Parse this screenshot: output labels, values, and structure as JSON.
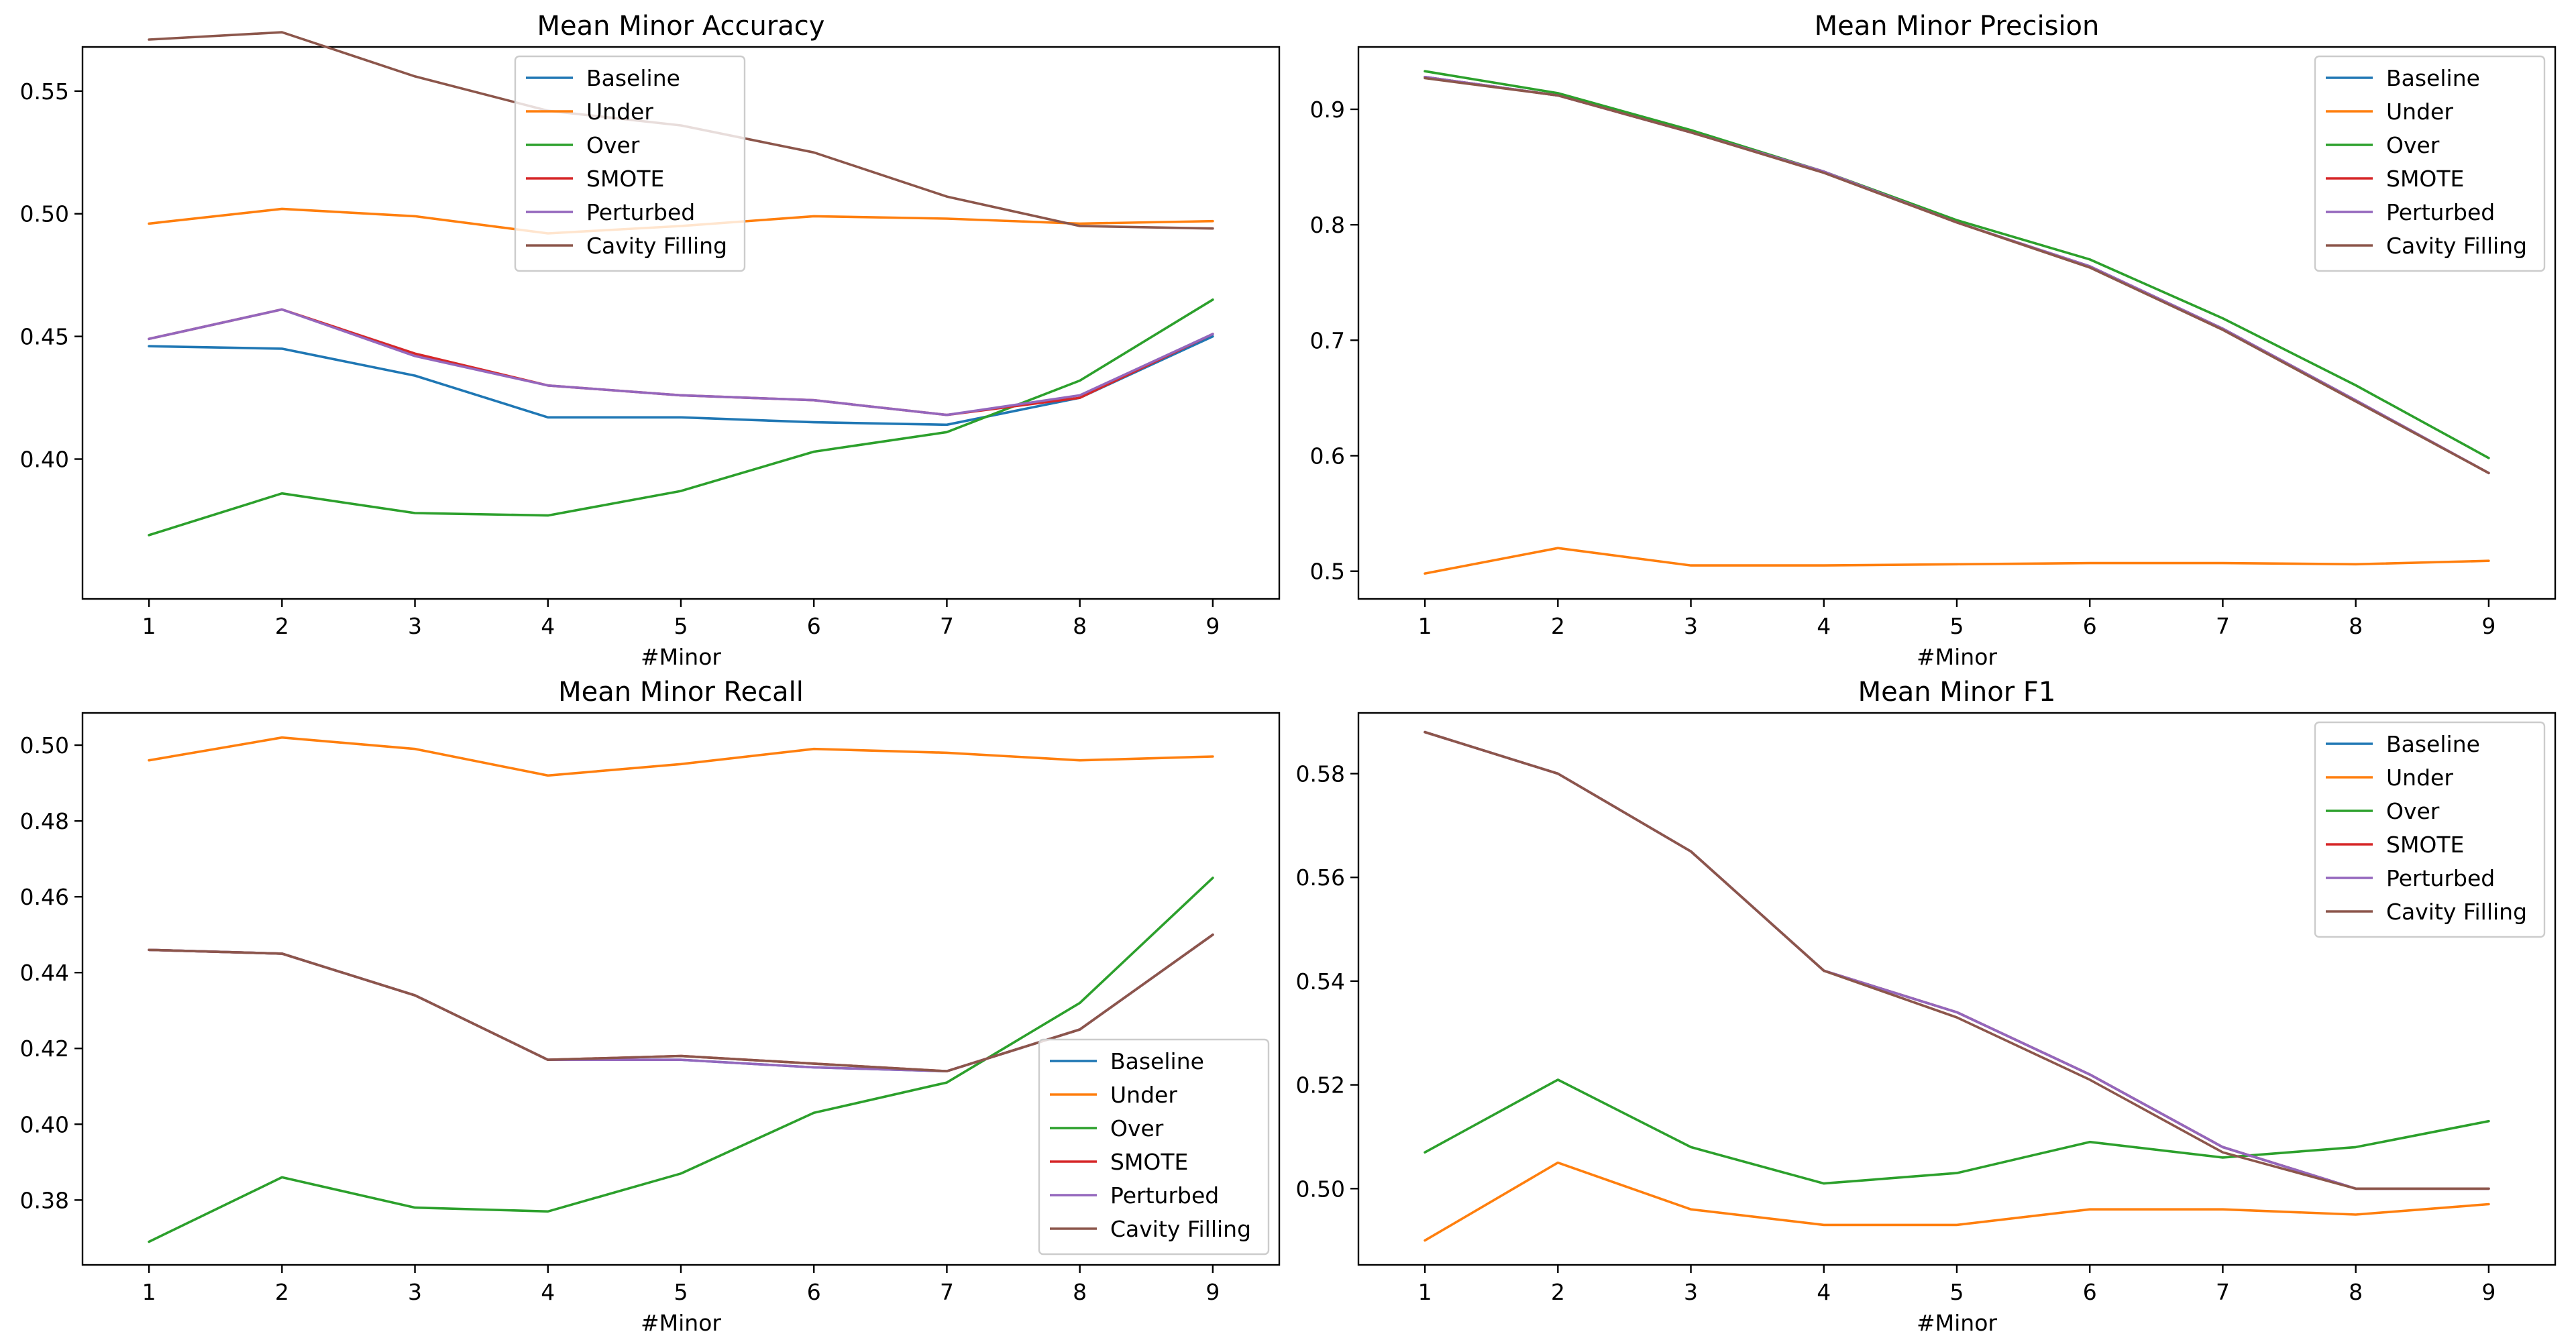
{
  "colors": {
    "Baseline": "#1f77b4",
    "Under": "#ff7f0e",
    "Over": "#2ca02c",
    "SMOTE": "#d62728",
    "Perturbed": "#9467bd",
    "Cavity Filling": "#8c564b"
  },
  "chart_data": [
    {
      "type": "line",
      "title": "Mean Minor Accuracy",
      "xlabel": "#Minor",
      "ylabel": "",
      "x": [
        1,
        2,
        3,
        4,
        5,
        6,
        7,
        8,
        9
      ],
      "xlim": [
        0.5,
        9.5
      ],
      "ylim": [
        0.343,
        0.568
      ],
      "yticks": [
        0.4,
        0.45,
        0.5,
        0.55
      ],
      "ytick_labels": [
        "0.40",
        "0.45",
        "0.50",
        "0.55"
      ],
      "legend": "upper-center",
      "series": [
        {
          "name": "Baseline",
          "values": [
            0.446,
            0.445,
            0.434,
            0.417,
            0.417,
            0.415,
            0.414,
            0.425,
            0.45
          ]
        },
        {
          "name": "Under",
          "values": [
            0.496,
            0.502,
            0.499,
            0.492,
            0.495,
            0.499,
            0.498,
            0.496,
            0.497
          ]
        },
        {
          "name": "Over",
          "values": [
            0.369,
            0.386,
            0.378,
            0.377,
            0.387,
            0.403,
            0.411,
            0.432,
            0.465
          ]
        },
        {
          "name": "SMOTE",
          "values": [
            0.449,
            0.461,
            0.443,
            0.43,
            0.426,
            0.424,
            0.418,
            0.425,
            0.451
          ]
        },
        {
          "name": "Perturbed",
          "values": [
            0.449,
            0.461,
            0.442,
            0.43,
            0.426,
            0.424,
            0.418,
            0.426,
            0.451
          ]
        },
        {
          "name": "Cavity Filling",
          "values": [
            0.571,
            0.574,
            0.556,
            0.542,
            0.536,
            0.525,
            0.507,
            0.495,
            0.494
          ]
        }
      ]
    },
    {
      "type": "line",
      "title": "Mean Minor Precision",
      "xlabel": "#Minor",
      "ylabel": "",
      "x": [
        1,
        2,
        3,
        4,
        5,
        6,
        7,
        8,
        9
      ],
      "xlim": [
        0.5,
        9.5
      ],
      "ylim": [
        0.476,
        0.954
      ],
      "yticks": [
        0.5,
        0.6,
        0.7,
        0.8,
        0.9
      ],
      "ytick_labels": [
        "0.5",
        "0.6",
        "0.7",
        "0.8",
        "0.9"
      ],
      "legend": "upper-right",
      "series": [
        {
          "name": "Baseline",
          "values": [
            0.928,
            0.912,
            0.88,
            0.846,
            0.802,
            0.764,
            0.71,
            0.648,
            0.585
          ]
        },
        {
          "name": "Under",
          "values": [
            0.498,
            0.52,
            0.505,
            0.505,
            0.506,
            0.507,
            0.507,
            0.506,
            0.509
          ]
        },
        {
          "name": "Over",
          "values": [
            0.933,
            0.914,
            0.882,
            0.846,
            0.804,
            0.77,
            0.719,
            0.661,
            0.598
          ]
        },
        {
          "name": "SMOTE",
          "values": [
            0.928,
            0.912,
            0.88,
            0.846,
            0.802,
            0.764,
            0.71,
            0.648,
            0.585
          ]
        },
        {
          "name": "Perturbed",
          "values": [
            0.928,
            0.912,
            0.88,
            0.846,
            0.802,
            0.764,
            0.71,
            0.648,
            0.585
          ]
        },
        {
          "name": "Cavity Filling",
          "values": [
            0.927,
            0.912,
            0.88,
            0.845,
            0.802,
            0.763,
            0.709,
            0.647,
            0.585
          ]
        }
      ]
    },
    {
      "type": "line",
      "title": "Mean Minor Recall",
      "xlabel": "#Minor",
      "ylabel": "",
      "x": [
        1,
        2,
        3,
        4,
        5,
        6,
        7,
        8,
        9
      ],
      "xlim": [
        0.5,
        9.5
      ],
      "ylim": [
        0.3629,
        0.5085
      ],
      "yticks": [
        0.38,
        0.4,
        0.42,
        0.44,
        0.46,
        0.48,
        0.5
      ],
      "ytick_labels": [
        "0.38",
        "0.40",
        "0.42",
        "0.44",
        "0.46",
        "0.48",
        "0.50"
      ],
      "legend": "lower-right",
      "series": [
        {
          "name": "Baseline",
          "values": [
            0.446,
            0.445,
            0.434,
            0.417,
            0.417,
            0.415,
            0.414,
            0.425,
            0.45
          ]
        },
        {
          "name": "Under",
          "values": [
            0.496,
            0.502,
            0.499,
            0.492,
            0.495,
            0.499,
            0.498,
            0.496,
            0.497
          ]
        },
        {
          "name": "Over",
          "values": [
            0.369,
            0.386,
            0.378,
            0.377,
            0.387,
            0.403,
            0.411,
            0.432,
            0.465
          ]
        },
        {
          "name": "SMOTE",
          "values": [
            0.446,
            0.445,
            0.434,
            0.417,
            0.418,
            0.416,
            0.414,
            0.425,
            0.45
          ]
        },
        {
          "name": "Perturbed",
          "values": [
            0.446,
            0.445,
            0.434,
            0.417,
            0.417,
            0.415,
            0.414,
            0.425,
            0.45
          ]
        },
        {
          "name": "Cavity Filling",
          "values": [
            0.446,
            0.445,
            0.434,
            0.417,
            0.418,
            0.416,
            0.414,
            0.425,
            0.45
          ]
        }
      ]
    },
    {
      "type": "line",
      "title": "Mean Minor F1",
      "xlabel": "#Minor",
      "ylabel": "",
      "x": [
        1,
        2,
        3,
        4,
        5,
        6,
        7,
        8,
        9
      ],
      "xlim": [
        0.5,
        9.5
      ],
      "ylim": [
        0.4853,
        0.5917
      ],
      "yticks": [
        0.5,
        0.52,
        0.54,
        0.56,
        0.58
      ],
      "ytick_labels": [
        "0.50",
        "0.52",
        "0.54",
        "0.56",
        "0.58"
      ],
      "legend": "upper-right",
      "series": [
        {
          "name": "Baseline",
          "values": [
            0.588,
            0.58,
            0.565,
            0.542,
            0.534,
            0.522,
            0.508,
            0.5,
            0.5
          ]
        },
        {
          "name": "Under",
          "values": [
            0.49,
            0.505,
            0.496,
            0.493,
            0.493,
            0.496,
            0.496,
            0.495,
            0.497
          ]
        },
        {
          "name": "Over",
          "values": [
            0.507,
            0.521,
            0.508,
            0.501,
            0.503,
            0.509,
            0.506,
            0.508,
            0.513
          ]
        },
        {
          "name": "SMOTE",
          "values": [
            0.588,
            0.58,
            0.565,
            0.542,
            0.534,
            0.522,
            0.508,
            0.5,
            0.5
          ]
        },
        {
          "name": "Perturbed",
          "values": [
            0.588,
            0.58,
            0.565,
            0.542,
            0.534,
            0.522,
            0.508,
            0.5,
            0.5
          ]
        },
        {
          "name": "Cavity Filling",
          "values": [
            0.588,
            0.58,
            0.565,
            0.542,
            0.533,
            0.521,
            0.507,
            0.5,
            0.5
          ]
        }
      ]
    }
  ]
}
